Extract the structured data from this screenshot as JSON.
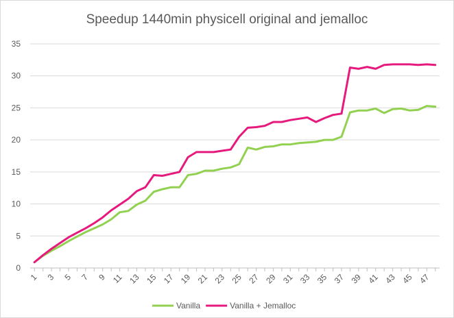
{
  "chart_data": {
    "type": "line",
    "title": "Speedup 1440min physicell original and jemalloc",
    "xlabel": "",
    "ylabel": "",
    "ylim": [
      0,
      35
    ],
    "yticks": [
      0,
      5,
      10,
      15,
      20,
      25,
      30,
      35
    ],
    "x": [
      1,
      2,
      3,
      4,
      5,
      6,
      7,
      8,
      9,
      10,
      11,
      12,
      13,
      14,
      15,
      16,
      17,
      18,
      19,
      20,
      21,
      22,
      23,
      24,
      25,
      26,
      27,
      28,
      29,
      30,
      31,
      32,
      33,
      34,
      35,
      36,
      37,
      38,
      39,
      40,
      41,
      42,
      43,
      44,
      45,
      46,
      47,
      48
    ],
    "xtick_labels": [
      "1",
      "3",
      "5",
      "7",
      "9",
      "11",
      "13",
      "15",
      "17",
      "19",
      "21",
      "23",
      "25",
      "27",
      "29",
      "31",
      "33",
      "35",
      "37",
      "39",
      "41",
      "43",
      "45",
      "47"
    ],
    "grid": "horizontal",
    "legend_position": "bottom",
    "series": [
      {
        "name": "Vanilla",
        "color": "#92d050",
        "values": [
          0.9,
          1.9,
          2.7,
          3.4,
          4.2,
          4.9,
          5.6,
          6.2,
          6.8,
          7.6,
          8.7,
          8.9,
          9.9,
          10.5,
          11.9,
          12.3,
          12.6,
          12.6,
          14.5,
          14.7,
          15.2,
          15.2,
          15.5,
          15.7,
          16.2,
          18.8,
          18.5,
          18.9,
          19.0,
          19.3,
          19.3,
          19.5,
          19.6,
          19.7,
          20.0,
          20.0,
          20.5,
          24.3,
          24.6,
          24.6,
          24.9,
          24.2,
          24.8,
          24.9,
          24.6,
          24.7,
          25.3,
          25.2
        ]
      },
      {
        "name": "Vanilla + Jemalloc",
        "color": "#e6197d",
        "values": [
          0.9,
          2.0,
          3.0,
          3.9,
          4.8,
          5.5,
          6.2,
          7.0,
          7.9,
          9.0,
          9.9,
          10.8,
          12.0,
          12.6,
          14.5,
          14.4,
          14.7,
          15.0,
          17.3,
          18.1,
          18.1,
          18.1,
          18.3,
          18.5,
          20.5,
          21.9,
          22.0,
          22.2,
          22.8,
          22.8,
          23.1,
          23.3,
          23.5,
          22.8,
          23.4,
          23.9,
          24.1,
          31.3,
          31.1,
          31.4,
          31.1,
          31.7,
          31.8,
          31.8,
          31.8,
          31.7,
          31.8,
          31.7
        ]
      }
    ]
  }
}
